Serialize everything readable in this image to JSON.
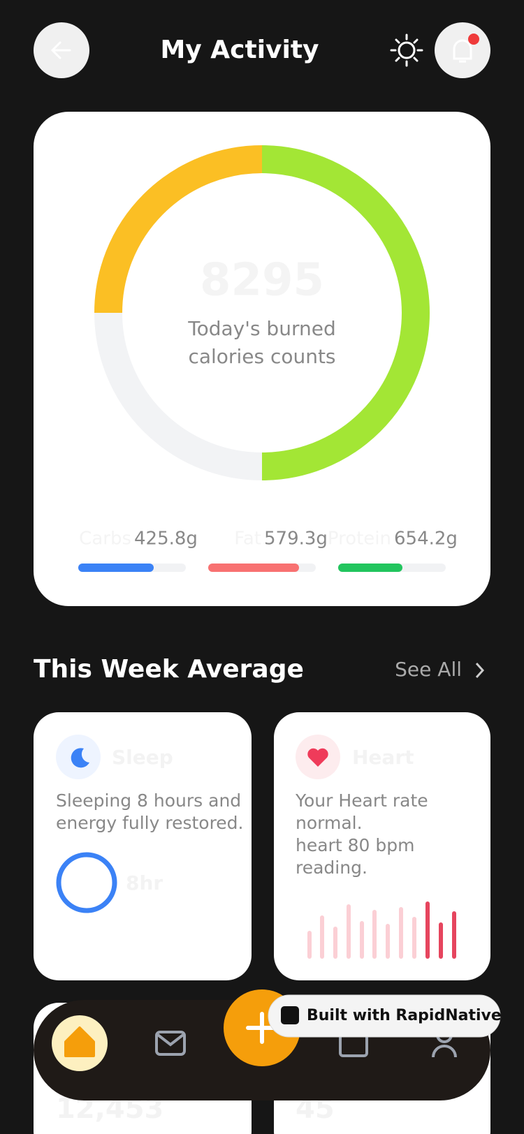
{
  "header": {
    "title": "My Activity"
  },
  "summary": {
    "calories": "8295",
    "caption": [
      "Today's burned",
      "calories counts"
    ],
    "macros": [
      {
        "name": "Carbs",
        "amount": "425.8g"
      },
      {
        "name": "Fat",
        "amount": "579.3g"
      },
      {
        "name": "Protein",
        "amount": "654.2g"
      }
    ]
  },
  "week": {
    "title": "This Week Average",
    "link": "See All",
    "sleep": {
      "title": "Sleep",
      "text": [
        "Sleeping 8 hours and",
        "energy fully restored."
      ],
      "value": "8hr"
    },
    "heart": {
      "title": "Heart",
      "text": [
        "Your Heart rate",
        "normal.",
        "heart 80 bpm",
        "reading."
      ]
    }
  },
  "more": {
    "steps": "12,453",
    "minutes": "45"
  },
  "badge": "Built with RapidNative"
}
